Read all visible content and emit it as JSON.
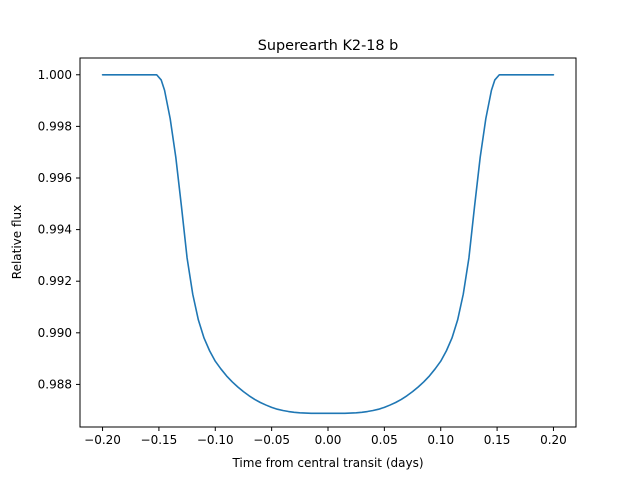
{
  "chart_data": {
    "type": "line",
    "title": "Superearth K2-18 b",
    "xlabel": "Time from central transit (days)",
    "ylabel": "Relative flux",
    "xlim": [
      -0.22,
      0.22
    ],
    "ylim": [
      0.98635,
      1.00065
    ],
    "grid": false,
    "color": "#1f77b4",
    "x_ticks": [
      -0.2,
      -0.15,
      -0.1,
      -0.05,
      0.0,
      0.05,
      0.1,
      0.15,
      0.2
    ],
    "x_tick_labels": [
      "−0.20",
      "−0.15",
      "−0.10",
      "−0.05",
      "0.00",
      "0.05",
      "0.10",
      "0.15",
      "0.20"
    ],
    "y_ticks": [
      0.988,
      0.99,
      0.992,
      0.994,
      0.996,
      0.998,
      1.0
    ],
    "y_tick_labels": [
      "0.988",
      "0.990",
      "0.992",
      "0.994",
      "0.996",
      "0.998",
      "1.000"
    ],
    "series": [
      {
        "x": [
          -0.2,
          -0.19,
          -0.18,
          -0.17,
          -0.16,
          -0.152,
          -0.148,
          -0.145,
          -0.14,
          -0.135,
          -0.13,
          -0.125,
          -0.12,
          -0.115,
          -0.11,
          -0.105,
          -0.1,
          -0.095,
          -0.09,
          -0.085,
          -0.08,
          -0.075,
          -0.07,
          -0.065,
          -0.06,
          -0.055,
          -0.05,
          -0.045,
          -0.04,
          -0.035,
          -0.03,
          -0.025,
          -0.02,
          -0.015,
          -0.01,
          -0.005,
          0.0,
          0.005,
          0.01,
          0.015,
          0.02,
          0.025,
          0.03,
          0.035,
          0.04,
          0.045,
          0.05,
          0.055,
          0.06,
          0.065,
          0.07,
          0.075,
          0.08,
          0.085,
          0.09,
          0.095,
          0.1,
          0.105,
          0.11,
          0.115,
          0.12,
          0.125,
          0.13,
          0.135,
          0.14,
          0.145,
          0.148,
          0.152,
          0.16,
          0.17,
          0.18,
          0.19,
          0.2
        ],
        "y": [
          1.0,
          1.0,
          1.0,
          1.0,
          1.0,
          1.0,
          0.9998,
          0.9994,
          0.9983,
          0.9968,
          0.9949,
          0.9929,
          0.9915,
          0.9905,
          0.9898,
          0.9893,
          0.9889,
          0.9886,
          0.98833,
          0.9881,
          0.9879,
          0.98772,
          0.98756,
          0.98742,
          0.9873,
          0.9872,
          0.98711,
          0.98704,
          0.98699,
          0.98695,
          0.98692,
          0.9869,
          0.98689,
          0.98688,
          0.98688,
          0.98688,
          0.98688,
          0.98688,
          0.98688,
          0.98688,
          0.98689,
          0.9869,
          0.98692,
          0.98695,
          0.98699,
          0.98704,
          0.98711,
          0.9872,
          0.9873,
          0.98742,
          0.98756,
          0.98772,
          0.9879,
          0.9881,
          0.98833,
          0.9886,
          0.9889,
          0.9893,
          0.9898,
          0.9905,
          0.9915,
          0.9929,
          0.9949,
          0.9968,
          0.9983,
          0.9994,
          0.9998,
          1.0,
          1.0,
          1.0,
          1.0,
          1.0,
          1.0
        ]
      }
    ]
  }
}
